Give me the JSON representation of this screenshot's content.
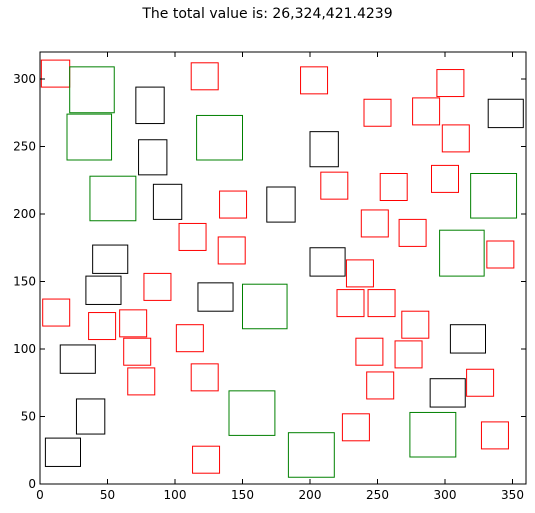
{
  "chart_data": {
    "type": "rectangles",
    "title": "The total value is: 26,324,421.4239",
    "xlim": [
      0,
      360
    ],
    "ylim": [
      0,
      320
    ],
    "xticks": [
      0,
      50,
      100,
      150,
      200,
      250,
      300,
      350
    ],
    "yticks": [
      0,
      50,
      100,
      150,
      200,
      250,
      300
    ],
    "colors": {
      "red": "#ff0000",
      "green": "#008000",
      "black": "#000000"
    },
    "rects": [
      {
        "x": 1,
        "y": 294,
        "w": 21,
        "h": 20,
        "color": "red"
      },
      {
        "x": 112,
        "y": 292,
        "w": 20,
        "h": 20,
        "color": "red"
      },
      {
        "x": 193,
        "y": 289,
        "w": 20,
        "h": 20,
        "color": "red"
      },
      {
        "x": 294,
        "y": 287,
        "w": 20,
        "h": 20,
        "color": "red"
      },
      {
        "x": 240,
        "y": 265,
        "w": 20,
        "h": 20,
        "color": "red"
      },
      {
        "x": 276,
        "y": 266,
        "w": 20,
        "h": 20,
        "color": "red"
      },
      {
        "x": 298,
        "y": 246,
        "w": 20,
        "h": 20,
        "color": "red"
      },
      {
        "x": 208,
        "y": 211,
        "w": 20,
        "h": 20,
        "color": "red"
      },
      {
        "x": 252,
        "y": 210,
        "w": 20,
        "h": 20,
        "color": "red"
      },
      {
        "x": 290,
        "y": 216,
        "w": 20,
        "h": 20,
        "color": "red"
      },
      {
        "x": 133,
        "y": 197,
        "w": 20,
        "h": 20,
        "color": "red"
      },
      {
        "x": 238,
        "y": 183,
        "w": 20,
        "h": 20,
        "color": "red"
      },
      {
        "x": 103,
        "y": 173,
        "w": 20,
        "h": 20,
        "color": "red"
      },
      {
        "x": 132,
        "y": 163,
        "w": 20,
        "h": 20,
        "color": "red"
      },
      {
        "x": 266,
        "y": 176,
        "w": 20,
        "h": 20,
        "color": "red"
      },
      {
        "x": 331,
        "y": 160,
        "w": 20,
        "h": 20,
        "color": "red"
      },
      {
        "x": 227,
        "y": 146,
        "w": 20,
        "h": 20,
        "color": "red"
      },
      {
        "x": 77,
        "y": 136,
        "w": 20,
        "h": 20,
        "color": "red"
      },
      {
        "x": 2,
        "y": 117,
        "w": 20,
        "h": 20,
        "color": "red"
      },
      {
        "x": 36,
        "y": 107,
        "w": 20,
        "h": 20,
        "color": "red"
      },
      {
        "x": 59,
        "y": 109,
        "w": 20,
        "h": 20,
        "color": "red"
      },
      {
        "x": 220,
        "y": 124,
        "w": 20,
        "h": 20,
        "color": "red"
      },
      {
        "x": 243,
        "y": 124,
        "w": 20,
        "h": 20,
        "color": "red"
      },
      {
        "x": 268,
        "y": 108,
        "w": 20,
        "h": 20,
        "color": "red"
      },
      {
        "x": 101,
        "y": 98,
        "w": 20,
        "h": 20,
        "color": "red"
      },
      {
        "x": 62,
        "y": 88,
        "w": 20,
        "h": 20,
        "color": "red"
      },
      {
        "x": 234,
        "y": 88,
        "w": 20,
        "h": 20,
        "color": "red"
      },
      {
        "x": 263,
        "y": 86,
        "w": 20,
        "h": 20,
        "color": "red"
      },
      {
        "x": 65,
        "y": 66,
        "w": 20,
        "h": 20,
        "color": "red"
      },
      {
        "x": 112,
        "y": 69,
        "w": 20,
        "h": 20,
        "color": "red"
      },
      {
        "x": 242,
        "y": 63,
        "w": 20,
        "h": 20,
        "color": "red"
      },
      {
        "x": 316,
        "y": 65,
        "w": 20,
        "h": 20,
        "color": "red"
      },
      {
        "x": 224,
        "y": 32,
        "w": 20,
        "h": 20,
        "color": "red"
      },
      {
        "x": 327,
        "y": 26,
        "w": 20,
        "h": 20,
        "color": "red"
      },
      {
        "x": 113,
        "y": 8,
        "w": 20,
        "h": 20,
        "color": "red"
      },
      {
        "x": 22,
        "y": 275,
        "w": 33,
        "h": 34,
        "color": "green"
      },
      {
        "x": 20,
        "y": 240,
        "w": 33,
        "h": 34,
        "color": "green"
      },
      {
        "x": 116,
        "y": 240,
        "w": 34,
        "h": 33,
        "color": "green"
      },
      {
        "x": 37,
        "y": 195,
        "w": 34,
        "h": 33,
        "color": "green"
      },
      {
        "x": 319,
        "y": 197,
        "w": 34,
        "h": 33,
        "color": "green"
      },
      {
        "x": 296,
        "y": 154,
        "w": 33,
        "h": 34,
        "color": "green"
      },
      {
        "x": 150,
        "y": 115,
        "w": 33,
        "h": 33,
        "color": "green"
      },
      {
        "x": 140,
        "y": 36,
        "w": 34,
        "h": 33,
        "color": "green"
      },
      {
        "x": 274,
        "y": 20,
        "w": 34,
        "h": 33,
        "color": "green"
      },
      {
        "x": 184,
        "y": 5,
        "w": 34,
        "h": 33,
        "color": "green"
      },
      {
        "x": 71,
        "y": 267,
        "w": 21,
        "h": 27,
        "color": "black"
      },
      {
        "x": 332,
        "y": 264,
        "w": 26,
        "h": 21,
        "color": "black"
      },
      {
        "x": 200,
        "y": 235,
        "w": 21,
        "h": 26,
        "color": "black"
      },
      {
        "x": 73,
        "y": 229,
        "w": 21,
        "h": 26,
        "color": "black"
      },
      {
        "x": 84,
        "y": 196,
        "w": 21,
        "h": 26,
        "color": "black"
      },
      {
        "x": 168,
        "y": 194,
        "w": 21,
        "h": 26,
        "color": "black"
      },
      {
        "x": 39,
        "y": 156,
        "w": 26,
        "h": 21,
        "color": "black"
      },
      {
        "x": 200,
        "y": 154,
        "w": 26,
        "h": 21,
        "color": "black"
      },
      {
        "x": 34,
        "y": 133,
        "w": 26,
        "h": 21,
        "color": "black"
      },
      {
        "x": 117,
        "y": 128,
        "w": 26,
        "h": 21,
        "color": "black"
      },
      {
        "x": 304,
        "y": 97,
        "w": 26,
        "h": 21,
        "color": "black"
      },
      {
        "x": 15,
        "y": 82,
        "w": 26,
        "h": 21,
        "color": "black"
      },
      {
        "x": 289,
        "y": 57,
        "w": 26,
        "h": 21,
        "color": "black"
      },
      {
        "x": 27,
        "y": 37,
        "w": 21,
        "h": 26,
        "color": "black"
      },
      {
        "x": 4,
        "y": 13,
        "w": 26,
        "h": 21,
        "color": "black"
      }
    ]
  }
}
